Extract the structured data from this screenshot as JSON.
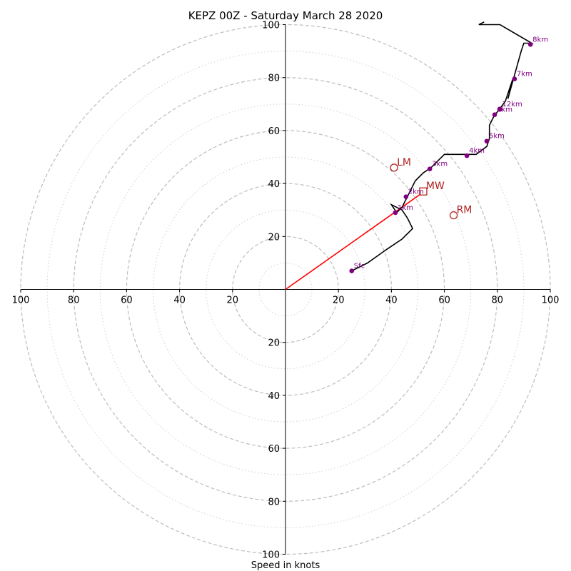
{
  "chart_data": {
    "type": "line",
    "title": "KEPZ 00Z - Saturday March 28 2020",
    "xlabel": "Speed in knots",
    "ylabel": "",
    "xlim": [
      -100,
      100
    ],
    "ylim": [
      -100,
      100
    ],
    "major_rings": [
      20,
      40,
      60,
      80,
      100
    ],
    "minor_rings": [
      10,
      30,
      50,
      70,
      90
    ],
    "x_tick_labels": [
      "100",
      "80",
      "60",
      "40",
      "20",
      "20",
      "40",
      "60",
      "80",
      "100"
    ],
    "x_tick_values": [
      -100,
      -80,
      -60,
      -40,
      -20,
      20,
      40,
      60,
      80,
      100
    ],
    "y_tick_labels_upper": [
      "20",
      "40",
      "60",
      "80",
      "100"
    ],
    "y_tick_values_upper": [
      20,
      40,
      60,
      80,
      100
    ],
    "y_tick_labels_lower": [
      "20",
      "40",
      "60",
      "80",
      "100"
    ],
    "y_tick_values_lower": [
      -20,
      -40,
      -60,
      -80,
      -100
    ],
    "hodograph": {
      "u": [
        25,
        31,
        38,
        44,
        48,
        46,
        44,
        40,
        42,
        44,
        46,
        49,
        52,
        55,
        60,
        65,
        72,
        76,
        77,
        77,
        79,
        80,
        83,
        86,
        84,
        89,
        90,
        93,
        81,
        73,
        75
      ],
      "v": [
        7,
        10,
        15,
        19,
        23,
        27,
        30,
        32,
        29,
        31,
        35,
        41,
        44,
        46,
        51,
        51,
        51,
        54,
        57,
        62,
        66,
        67,
        71,
        80,
        72,
        90,
        93,
        93,
        100,
        100,
        101
      ]
    },
    "height_markers": [
      {
        "label": "Sfc",
        "u": 25,
        "v": 7
      },
      {
        "label": "1km",
        "u": 41.5,
        "v": 29
      },
      {
        "label": "2km",
        "u": 45.5,
        "v": 35
      },
      {
        "label": "3km",
        "u": 54.5,
        "v": 45.5
      },
      {
        "label": "4km",
        "u": 68.5,
        "v": 50.5
      },
      {
        "label": "5km",
        "u": 76,
        "v": 56
      },
      {
        "label": "6km",
        "u": 79,
        "v": 66
      },
      {
        "label": "7km",
        "u": 86.5,
        "v": 79.5
      },
      {
        "label": "8km",
        "u": 92.5,
        "v": 92.5
      },
      {
        "label": "12km",
        "u": 81,
        "v": 68
      }
    ],
    "storm_motions": [
      {
        "label": "LM",
        "u": 41,
        "v": 46,
        "marker": "circle"
      },
      {
        "label": "RM",
        "u": 63.5,
        "v": 28,
        "marker": "circle"
      },
      {
        "label": "MW",
        "u": 52,
        "v": 37,
        "marker": "square"
      }
    ],
    "shear_vector": {
      "u0": 0,
      "v0": 0,
      "u1": 51,
      "v1": 36
    },
    "colors": {
      "hodograph": "#000000",
      "height_markers": "#800080",
      "storm_motion": "#b22222",
      "shear_vector": "#ff0000",
      "rings": "#bdbdbd"
    },
    "grid": true
  }
}
